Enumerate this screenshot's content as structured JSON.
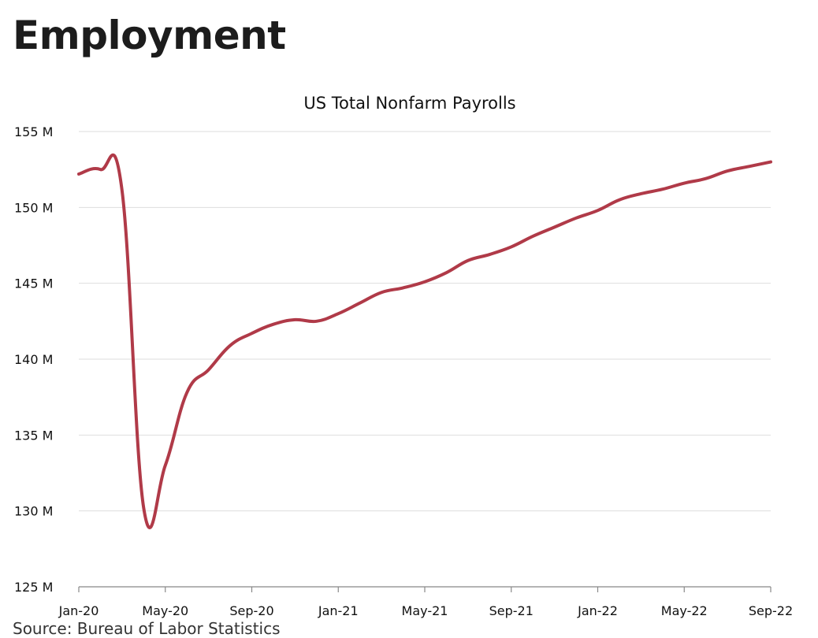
{
  "page": {
    "heading": "Employment"
  },
  "colors": {
    "series": "#b03a48"
  },
  "chart_data": {
    "type": "line",
    "title": "US Total Nonfarm Payrolls",
    "xlabel": "",
    "ylabel": "",
    "ylim": [
      125,
      155
    ],
    "y_ticks": [
      125,
      130,
      135,
      140,
      145,
      150,
      155
    ],
    "y_tick_labels": [
      "125 M",
      "130 M",
      "135 M",
      "140 M",
      "145 M",
      "150 M",
      "155 M"
    ],
    "x_ticks": [
      "2020-01",
      "2020-05",
      "2020-09",
      "2021-01",
      "2021-05",
      "2021-09",
      "2022-01",
      "2022-05",
      "2022-09"
    ],
    "x_tick_labels": [
      "Jan-20",
      "May-20",
      "Sep-20",
      "Jan-21",
      "May-21",
      "Sep-21",
      "Jan-22",
      "May-22",
      "Sep-22"
    ],
    "grid": true,
    "legend": "none",
    "series": [
      {
        "unit": "millions",
        "points": [
          [
            "2020-01",
            152.2
          ],
          [
            "2020-02",
            152.5
          ],
          [
            "2020-03",
            151.1
          ],
          [
            "2020-04",
            130.2
          ],
          [
            "2020-05",
            133.0
          ],
          [
            "2020-06",
            137.8
          ],
          [
            "2020-07",
            139.3
          ],
          [
            "2020-08",
            140.9
          ],
          [
            "2020-09",
            141.7
          ],
          [
            "2020-10",
            142.3
          ],
          [
            "2020-11",
            142.6
          ],
          [
            "2020-12",
            142.5
          ],
          [
            "2021-01",
            143.0
          ],
          [
            "2021-02",
            143.7
          ],
          [
            "2021-03",
            144.4
          ],
          [
            "2021-04",
            144.7
          ],
          [
            "2021-05",
            145.1
          ],
          [
            "2021-06",
            145.7
          ],
          [
            "2021-07",
            146.5
          ],
          [
            "2021-08",
            146.9
          ],
          [
            "2021-09",
            147.4
          ],
          [
            "2021-10",
            148.1
          ],
          [
            "2021-11",
            148.7
          ],
          [
            "2021-12",
            149.3
          ],
          [
            "2022-01",
            149.8
          ],
          [
            "2022-02",
            150.5
          ],
          [
            "2022-03",
            150.9
          ],
          [
            "2022-04",
            151.2
          ],
          [
            "2022-05",
            151.6
          ],
          [
            "2022-06",
            151.9
          ],
          [
            "2022-07",
            152.4
          ],
          [
            "2022-08",
            152.7
          ],
          [
            "2022-09",
            153.0
          ]
        ]
      }
    ]
  },
  "source": {
    "text": "Source: Bureau of Labor Statistics"
  }
}
